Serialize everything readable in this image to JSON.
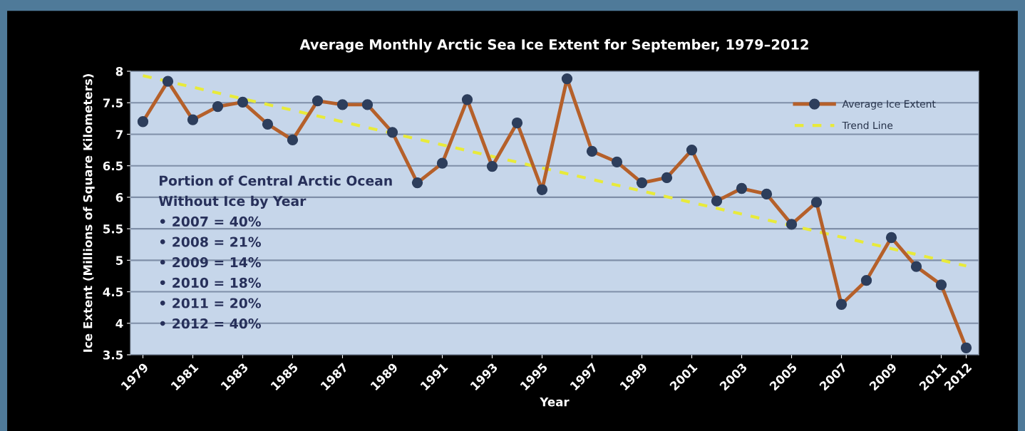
{
  "chart_data": {
    "type": "line",
    "title": "Average Monthly Arctic Sea Ice Extent for September, 1979–2012",
    "xlabel": "Year",
    "ylabel": "Ice Extent (Millions of Square Kilometers)",
    "x": [
      1979,
      1980,
      1981,
      1982,
      1983,
      1984,
      1985,
      1986,
      1987,
      1988,
      1989,
      1990,
      1991,
      1992,
      1993,
      1994,
      1995,
      1996,
      1997,
      1998,
      1999,
      2000,
      2001,
      2002,
      2003,
      2004,
      2005,
      2006,
      2007,
      2008,
      2009,
      2010,
      2011,
      2012
    ],
    "series": [
      {
        "name": "Average Ice Extent",
        "color": "#b5602a",
        "marker": "circle",
        "line_style": "solid",
        "values": [
          7.2,
          7.84,
          7.23,
          7.44,
          7.51,
          7.16,
          6.91,
          7.53,
          7.47,
          7.47,
          7.03,
          6.23,
          6.54,
          7.55,
          6.49,
          7.18,
          6.12,
          7.88,
          6.73,
          6.56,
          6.23,
          6.31,
          6.75,
          5.94,
          6.14,
          6.05,
          5.57,
          5.92,
          4.3,
          4.68,
          5.36,
          4.9,
          4.61,
          3.61
        ]
      },
      {
        "name": "Trend Line",
        "color": "#e8ea3a",
        "marker": "none",
        "line_style": "dashed",
        "x": [
          1979,
          2012
        ],
        "values": [
          7.93,
          4.91
        ]
      }
    ],
    "xlim": [
      1978.5,
      2012.5
    ],
    "xticks": [
      1979,
      1981,
      1983,
      1985,
      1987,
      1989,
      1991,
      1993,
      1995,
      1997,
      1999,
      2001,
      2003,
      2005,
      2007,
      2009,
      2011,
      2012
    ],
    "ylim": [
      3.5,
      8
    ],
    "yticks": [
      3.5,
      4,
      4.5,
      5,
      5.5,
      6,
      6.5,
      7,
      7.5,
      8
    ],
    "grid": "y",
    "legend": "top right",
    "annotations": [
      "Portion of Central Arctic Ocean",
      "Without Ice by Year",
      "• 2007 = 40%",
      "• 2008 = 21%",
      "• 2009 = 14%",
      "• 2010 = 18%",
      "• 2011 = 20%",
      "• 2012 = 40%"
    ]
  }
}
